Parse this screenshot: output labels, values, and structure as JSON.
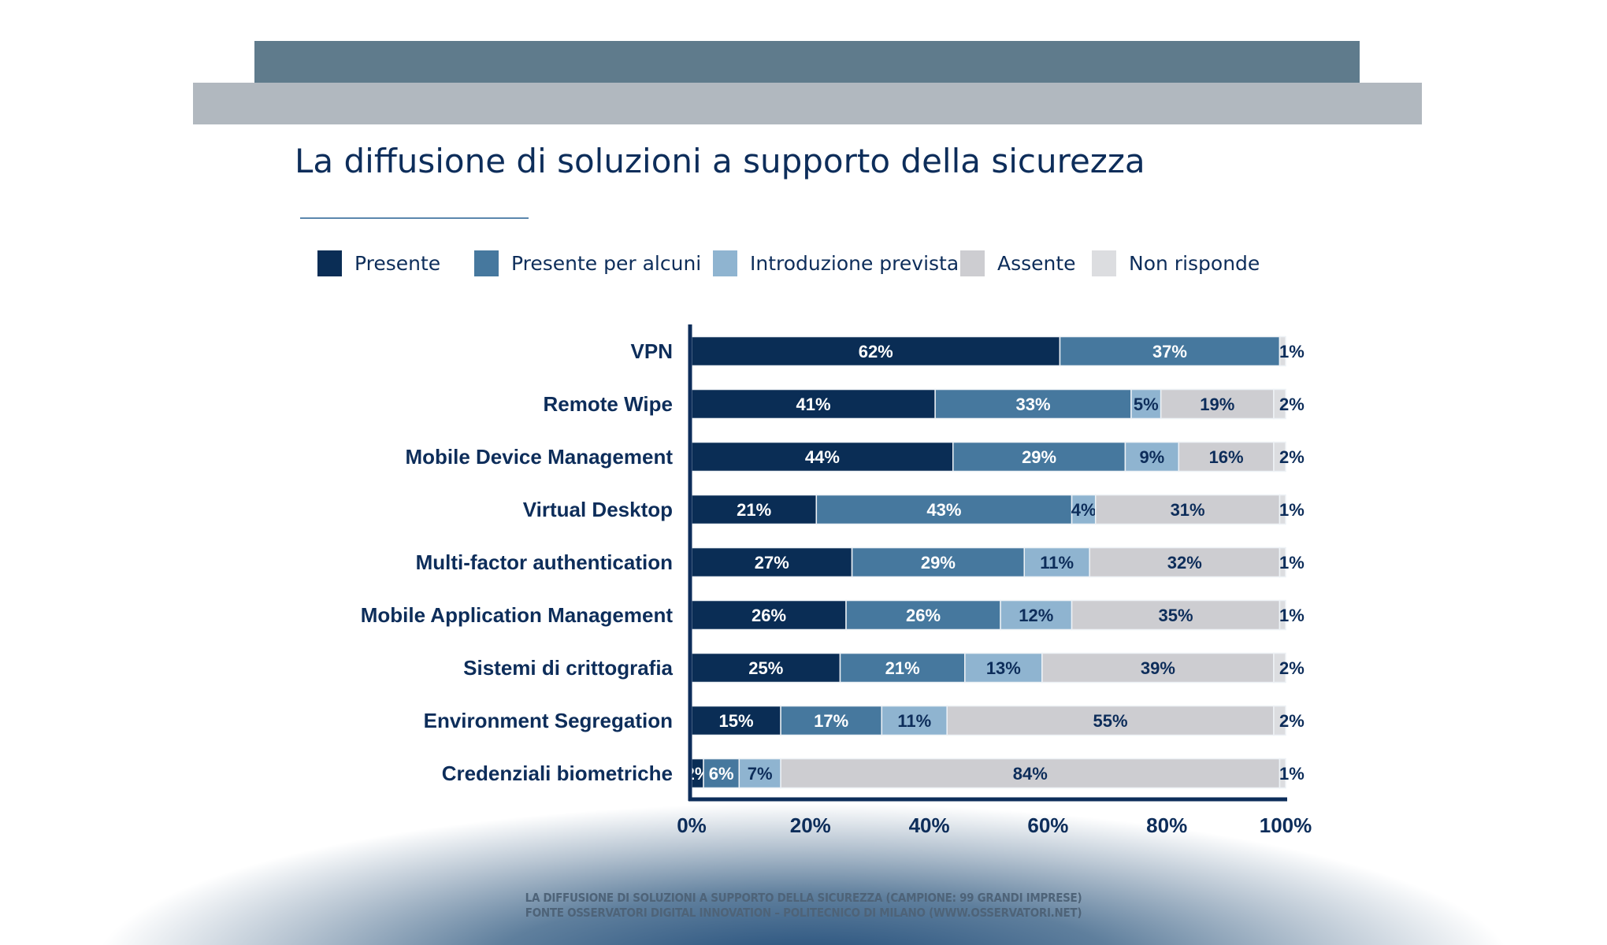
{
  "title": "La diffusione di soluzioni a supporto della sicurezza",
  "footer": {
    "line1": "LA DIFFUSIONE DI SOLUZIONI A SUPPORTO DELLA SICUREZZA (CAMPIONE: 99 GRANDI IMPRESE)",
    "line2": "FONTE OSSERVATORI DIGITAL INNOVATION – POLITECNICO DI MILANO (WWW.OSSERVATORI.NET)"
  },
  "chart_data": {
    "type": "bar",
    "orientation": "horizontal",
    "stacked": true,
    "title": "La diffusione di soluzioni a supporto della sicurezza",
    "legend_placement": "top",
    "grid": false,
    "xlim": [
      0,
      100
    ],
    "x_ticks": [
      "0%",
      "20%",
      "40%",
      "60%",
      "80%",
      "100%"
    ],
    "categories": [
      "VPN",
      "Remote Wipe",
      "Mobile Device Management",
      "Virtual Desktop",
      "Multi-factor authentication",
      "Mobile Application Management",
      "Sistemi di crittografia",
      "Environment Segregation",
      "Credenziali biometriche"
    ],
    "series": [
      {
        "name": "Presente",
        "color": "#0a2d55",
        "values": [
          62,
          41,
          44,
          21,
          27,
          26,
          25,
          15,
          2
        ]
      },
      {
        "name": "Presente per alcuni",
        "color": "#46789e",
        "values": [
          37,
          33,
          29,
          43,
          29,
          26,
          21,
          17,
          6
        ]
      },
      {
        "name": "Introduzione prevista",
        "color": "#8fb4d0",
        "values": [
          0,
          5,
          9,
          4,
          11,
          12,
          13,
          11,
          7
        ]
      },
      {
        "name": "Assente",
        "color": "#cdcdd1",
        "values": [
          0,
          19,
          16,
          31,
          32,
          35,
          39,
          55,
          84
        ]
      },
      {
        "name": "Non risponde",
        "color": "#dcdde0",
        "values": [
          1,
          2,
          2,
          1,
          1,
          1,
          2,
          2,
          1
        ]
      }
    ]
  }
}
